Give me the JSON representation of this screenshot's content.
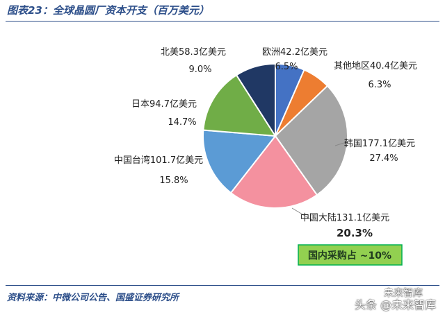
{
  "figure": {
    "title": "图表23：全球晶圆厂资本开支（百万美元）",
    "source": "资料来源：中微公司公告、国盛证券研究所"
  },
  "chart_data": {
    "type": "pie",
    "unit": "亿美元",
    "start": "欧洲",
    "direction": "clockwise",
    "slices": [
      {
        "label": "欧洲42.2亿美元",
        "region": "欧洲",
        "value": 42.2,
        "percent": "6.5%",
        "color": "#4472c4"
      },
      {
        "label": "其他地区40.4亿美元",
        "region": "其他地区",
        "value": 40.4,
        "percent": "6.3%",
        "color": "#ed7d31"
      },
      {
        "label": "韩国177.1亿美元",
        "region": "韩国",
        "value": 177.1,
        "percent": "27.4%",
        "color": "#a5a5a5"
      },
      {
        "label": "中国大陆131.1亿美元",
        "region": "中国大陆",
        "value": 131.1,
        "percent": "20.3%",
        "color": "#f4919f",
        "emphasis": true
      },
      {
        "label": "中国台湾101.7亿美元",
        "region": "中国台湾",
        "value": 101.7,
        "percent": "15.8%",
        "color": "#5b9bd5"
      },
      {
        "label": "日本94.7亿美元",
        "region": "日本",
        "value": 94.7,
        "percent": "14.7%",
        "color": "#70ad47"
      },
      {
        "label": "北美58.3亿美元",
        "region": "北美",
        "value": 58.3,
        "percent": "9.0%",
        "color": "#203864"
      }
    ],
    "annotation": {
      "text": "国内采购占 ~10%",
      "bg_color": "#92d050",
      "border_color": "#00b050"
    }
  },
  "watermark": {
    "line1": "未来智库",
    "line2": "头条 @未来智库"
  }
}
